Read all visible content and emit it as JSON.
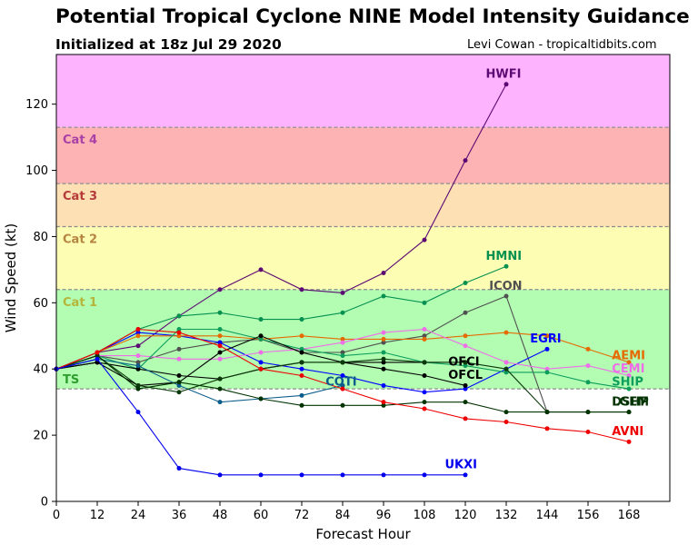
{
  "header": {
    "title": "Potential Tropical Cyclone NINE Model Intensity Guidance",
    "subtitle": "Initialized at 18z Jul 29 2020",
    "credit": "Levi Cowan - tropicaltidbits.com"
  },
  "chart_data": {
    "type": "line",
    "xlabel": "Forecast Hour",
    "ylabel": "Wind Speed (kt)",
    "xlim": [
      0,
      180
    ],
    "ylim": [
      0,
      135
    ],
    "xticks": [
      0,
      12,
      24,
      36,
      48,
      60,
      72,
      84,
      96,
      108,
      120,
      132,
      144,
      156,
      168
    ],
    "yticks": [
      0,
      20,
      40,
      60,
      80,
      100,
      120
    ],
    "grid": false,
    "bands": [
      {
        "label": "TS",
        "from": 34,
        "to": 64,
        "color": "#b3fdb3",
        "label_color": "#2e9e2e"
      },
      {
        "label": "Cat 1",
        "from": 64,
        "to": 83,
        "color": "#fdfdb3",
        "label_color": "#b5b53a"
      },
      {
        "label": "Cat 2",
        "from": 83,
        "to": 96,
        "color": "#fde0b3",
        "label_color": "#b58440"
      },
      {
        "label": "Cat 3",
        "from": 96,
        "to": 113,
        "color": "#fdb3b3",
        "label_color": "#b53a3a"
      },
      {
        "label": "Cat 4",
        "from": 113,
        "to": 135,
        "color": "#fdb3fd",
        "label_color": "#a840a8"
      }
    ],
    "series": [
      {
        "name": "HWFI",
        "color": "#5c0a73",
        "x": [
          0,
          12,
          24,
          36,
          48,
          60,
          72,
          84,
          96,
          108,
          120,
          132
        ],
        "y": [
          40,
          45,
          47,
          56,
          64,
          70,
          64,
          63,
          69,
          79,
          103,
          126
        ]
      },
      {
        "name": "HMNI",
        "color": "#079150",
        "x": [
          0,
          12,
          24,
          36,
          48,
          60,
          72,
          84,
          96,
          108,
          120,
          132
        ],
        "y": [
          40,
          45,
          52,
          56,
          57,
          55,
          55,
          57,
          62,
          60,
          66,
          71
        ]
      },
      {
        "name": "ICON",
        "color": "#505050",
        "x": [
          0,
          12,
          24,
          36,
          48,
          60,
          72,
          84,
          96,
          108,
          120,
          132,
          144
        ],
        "y": [
          40,
          44,
          42,
          46,
          48,
          49,
          45,
          45,
          48,
          50,
          57,
          62,
          27
        ]
      },
      {
        "name": "EGRI",
        "color": "#0000ff",
        "x": [
          0,
          12,
          24,
          36,
          48,
          60,
          72,
          84,
          96,
          108,
          120,
          132,
          144
        ],
        "y": [
          40,
          45,
          51,
          50,
          48,
          42,
          40,
          38,
          35,
          33,
          34,
          40,
          46
        ]
      },
      {
        "name": "AEMI",
        "color": "#e56a00",
        "x": [
          0,
          12,
          24,
          36,
          48,
          60,
          72,
          84,
          96,
          108,
          120,
          132,
          144,
          156,
          168
        ],
        "y": [
          40,
          45,
          50,
          50,
          50,
          49,
          50,
          49,
          49,
          49,
          50,
          51,
          50,
          46,
          42
        ]
      },
      {
        "name": "CEMI",
        "color": "#ee6ee8",
        "x": [
          0,
          12,
          24,
          36,
          48,
          60,
          72,
          84,
          96,
          108,
          120,
          132,
          144,
          156,
          168
        ],
        "y": [
          40,
          44,
          44,
          43,
          43,
          45,
          46,
          48,
          51,
          52,
          47,
          42,
          40,
          41,
          38
        ]
      },
      {
        "name": "SHIP",
        "color": "#0d9e5c",
        "x": [
          0,
          12,
          24,
          36,
          48,
          60,
          72,
          84,
          96,
          108,
          120,
          132,
          144,
          156,
          168
        ],
        "y": [
          40,
          44,
          40,
          52,
          52,
          49,
          46,
          44,
          45,
          42,
          41,
          39,
          39,
          36,
          34
        ]
      },
      {
        "name": "OFCI",
        "color": "#000000",
        "x": [
          0,
          12,
          24,
          36,
          48,
          60,
          72,
          84,
          96,
          108,
          120
        ],
        "y": [
          40,
          42,
          35,
          36,
          45,
          50,
          45,
          42,
          42,
          42,
          42
        ]
      },
      {
        "name": "OFCL",
        "color": "#000000",
        "x": [
          0,
          12,
          24,
          36,
          48,
          60,
          72,
          84,
          96,
          108,
          120
        ],
        "y": [
          40,
          42,
          40,
          38,
          37,
          40,
          42,
          42,
          40,
          38,
          35
        ]
      },
      {
        "name": "COTI",
        "color": "#0a5d8a",
        "x": [
          0,
          12,
          24,
          36,
          48,
          60,
          72,
          84
        ],
        "y": [
          40,
          43,
          41,
          35,
          30,
          31,
          32,
          35
        ]
      },
      {
        "name": "DSHP",
        "color": "#0c3a0c",
        "x": [
          0,
          12,
          24,
          36,
          48,
          60,
          72,
          84,
          96,
          108,
          120,
          132,
          144,
          156,
          168
        ],
        "y": [
          40,
          44,
          35,
          33,
          37,
          40,
          42,
          42,
          43,
          42,
          42,
          40,
          27,
          27,
          27
        ]
      },
      {
        "name": "LGEM",
        "color": "#003300",
        "x": [
          0,
          12,
          24,
          36,
          48,
          60,
          72,
          84,
          96,
          108,
          120,
          132,
          144,
          156,
          168
        ],
        "y": [
          40,
          44,
          34,
          36,
          34,
          31,
          29,
          29,
          29,
          30,
          30,
          27,
          27,
          27,
          27
        ]
      },
      {
        "name": "AVNI",
        "color": "#ee0000",
        "x": [
          0,
          12,
          24,
          36,
          48,
          60,
          72,
          84,
          96,
          108,
          120,
          132,
          144,
          156,
          168
        ],
        "y": [
          40,
          45,
          52,
          51,
          47,
          40,
          38,
          34,
          30,
          28,
          25,
          24,
          22,
          21,
          18
        ]
      },
      {
        "name": "UKXI",
        "color": "#0000ee",
        "x": [
          0,
          12,
          24,
          36,
          48,
          60,
          72,
          84,
          96,
          108,
          120
        ],
        "y": [
          40,
          43,
          27,
          10,
          8,
          8,
          8,
          8,
          8,
          8,
          8
        ]
      }
    ],
    "labels": [
      {
        "text": "HWFI",
        "x": 126,
        "y": 128,
        "color": "#5c0a73"
      },
      {
        "text": "HMNI",
        "x": 126,
        "y": 73,
        "color": "#079150"
      },
      {
        "text": "ICON",
        "x": 127,
        "y": 64,
        "color": "#505050"
      },
      {
        "text": "EGRI",
        "x": 139,
        "y": 48,
        "color": "#0000ff"
      },
      {
        "text": "AEMI",
        "x": 163,
        "y": 43,
        "color": "#e56a00"
      },
      {
        "text": "CEMI",
        "x": 163,
        "y": 39,
        "color": "#ee6ee8"
      },
      {
        "text": "SHIP",
        "x": 163,
        "y": 35,
        "color": "#0d9e5c"
      },
      {
        "text": "OFCI",
        "x": 115,
        "y": 41,
        "color": "#000000"
      },
      {
        "text": "OFCL",
        "x": 115,
        "y": 37,
        "color": "#000000"
      },
      {
        "text": "COTI",
        "x": 79,
        "y": 35,
        "color": "#0a5d8a"
      },
      {
        "text": "DSHP",
        "x": 163,
        "y": 29,
        "color": "#0c3a0c"
      },
      {
        "text": "LGEM",
        "x": 163,
        "y": 29,
        "color": "#003300"
      },
      {
        "text": "AVNI",
        "x": 163,
        "y": 20,
        "color": "#ee0000"
      },
      {
        "text": "UKXI",
        "x": 114,
        "y": 10,
        "color": "#0000ee"
      }
    ]
  }
}
